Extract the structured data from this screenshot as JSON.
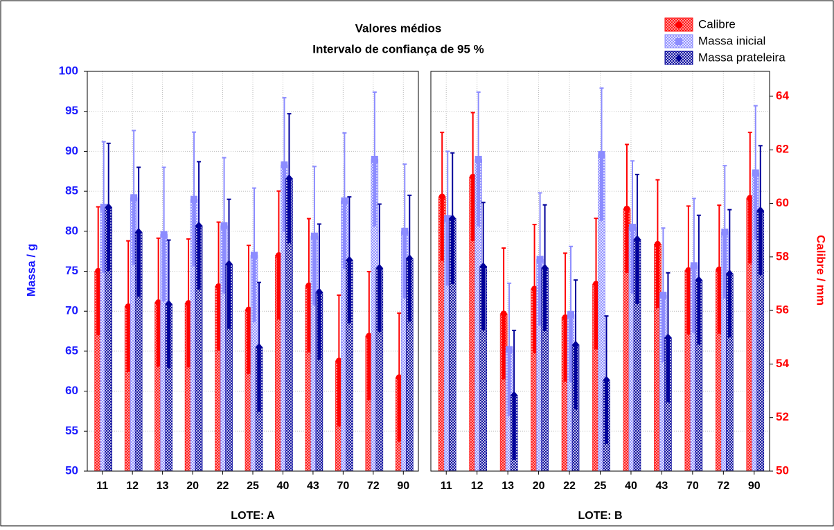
{
  "chart_data": {
    "type": "bar",
    "title": "Valores médios",
    "subtitle": "Intervalo de confiança de 95 %",
    "ylabel": "Massa / g",
    "y2label": "Calibre / mm",
    "ylim": [
      50,
      100
    ],
    "yticks": [
      50,
      55,
      60,
      65,
      70,
      75,
      80,
      85,
      90,
      95,
      100
    ],
    "y2lim": [
      50,
      64.93
    ],
    "y2ticks": [
      50,
      52,
      54,
      56,
      58,
      60,
      62,
      64
    ],
    "grid": true,
    "legend": "upper right",
    "categories": [
      "11",
      "12",
      "13",
      "20",
      "22",
      "25",
      "40",
      "43",
      "70",
      "72",
      "90"
    ],
    "series": [
      {
        "name": "Calibre",
        "color": "#ff0000",
        "axis": "y2"
      },
      {
        "name": "Massa inicial",
        "color": "#8c8cff"
      },
      {
        "name": "Massa prateleira",
        "color": "#000099"
      }
    ],
    "panels": [
      {
        "label": "LOTE: A",
        "series": [
          {
            "values": [
              57.47,
              56.15,
              56.3,
              56.27,
              56.9,
              56.03,
              58.06,
              56.93,
              54.12,
              55.05,
              53.5
            ],
            "errors": [
              2.4,
              2.45,
              2.4,
              2.4,
              2.4,
              2.4,
              2.4,
              2.5,
              2.45,
              2.4,
              2.4
            ]
          },
          {
            "values": [
              83,
              84.2,
              79.6,
              84,
              80.7,
              77,
              88.3,
              79.4,
              83.8,
              89,
              80
            ],
            "errors": [
              8.2,
              8.4,
              8.4,
              8.4,
              8.5,
              8.4,
              8.4,
              8.7,
              8.5,
              8.4,
              8.4
            ]
          },
          {
            "values": [
              83,
              79.9,
              70.9,
              80.7,
              75.9,
              65.5,
              86.6,
              72.4,
              76.4,
              75.4,
              76.6
            ],
            "errors": [
              8,
              8.1,
              8,
              8,
              8.1,
              8.1,
              8.1,
              8.5,
              7.9,
              8,
              7.9
            ]
          }
        ]
      },
      {
        "label": "LOTE: B",
        "series": [
          {
            "values": [
              60.25,
              60.99,
              55.88,
              56.81,
              55.74,
              56.99,
              59.8,
              58.48,
              57.5,
              57.53,
              60.2
            ],
            "errors": [
              2.4,
              2.4,
              2.45,
              2.4,
              2.4,
              2.45,
              2.4,
              2.4,
              2.4,
              2.4,
              2.45
            ]
          },
          {
            "values": [
              81.6,
              89,
              65.2,
              76.5,
              69.6,
              89.6,
              80.5,
              72,
              75.7,
              79.9,
              87.3
            ],
            "errors": [
              8.4,
              8.4,
              8.3,
              8.3,
              8.5,
              8.3,
              8.3,
              8.4,
              8.4,
              8.3,
              8.4
            ]
          },
          {
            "values": [
              81.6,
              75.6,
              59.5,
              75.4,
              65.8,
              61.4,
              79,
              66.7,
              73.9,
              74.7,
              82.6
            ],
            "errors": [
              8.2,
              8,
              8.1,
              7.9,
              8.1,
              8,
              8.1,
              8.1,
              8.1,
              8,
              8.1
            ]
          }
        ]
      }
    ]
  }
}
